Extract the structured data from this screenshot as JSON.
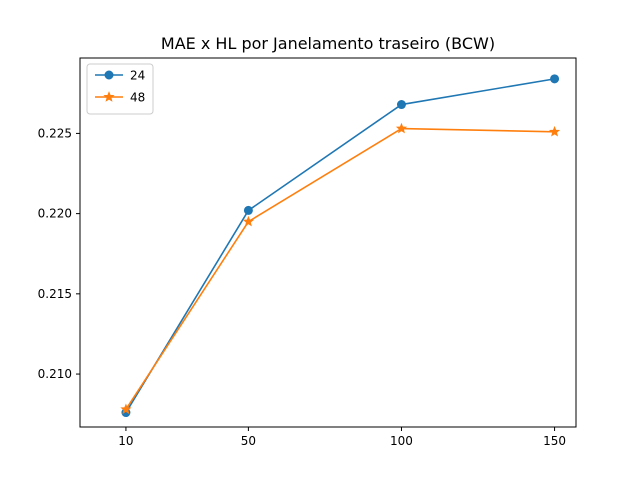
{
  "chart_data": {
    "type": "line",
    "title": "MAE x HL por Janelamento traseiro (BCW)",
    "xlabel": "",
    "ylabel": "",
    "x": [
      10,
      50,
      100,
      150
    ],
    "x_tick_labels": [
      "10",
      "50",
      "100",
      "150"
    ],
    "xlim": [
      -5,
      157
    ],
    "ylim": [
      0.2067,
      0.2297
    ],
    "y_ticks": [
      0.21,
      0.215,
      0.22,
      0.225
    ],
    "y_tick_labels": [
      "0.210",
      "0.215",
      "0.220",
      "0.225"
    ],
    "grid": false,
    "legend_position": "top-left",
    "series": [
      {
        "name": "24",
        "values": [
          0.2076,
          0.2202,
          0.2268,
          0.2284
        ],
        "color": "#1f77b4",
        "marker": "circle"
      },
      {
        "name": "48",
        "values": [
          0.2078,
          0.2195,
          0.2253,
          0.2251
        ],
        "color": "#ff7f0e",
        "marker": "star"
      }
    ]
  }
}
